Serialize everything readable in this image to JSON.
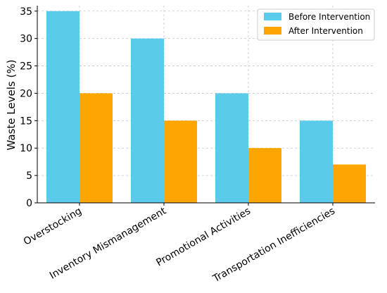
{
  "chart_data": {
    "type": "bar",
    "title": "",
    "xlabel": "",
    "ylabel": "Waste Levels (%)",
    "categories": [
      "Overstocking",
      "Inventory Mismanagement",
      "Promotional Activities",
      "Transportation Inefficiencies"
    ],
    "series": [
      {
        "name": "Before Intervention",
        "color": "#5bcbeb",
        "values": [
          35,
          30,
          20,
          15
        ]
      },
      {
        "name": "After Intervention",
        "color": "#ffa500",
        "values": [
          20,
          15,
          10,
          7
        ]
      }
    ],
    "ylim": [
      0,
      36
    ],
    "yticks": [
      0,
      5,
      10,
      15,
      20,
      25,
      30,
      35
    ],
    "grid": true,
    "legend_position": "top-right"
  }
}
